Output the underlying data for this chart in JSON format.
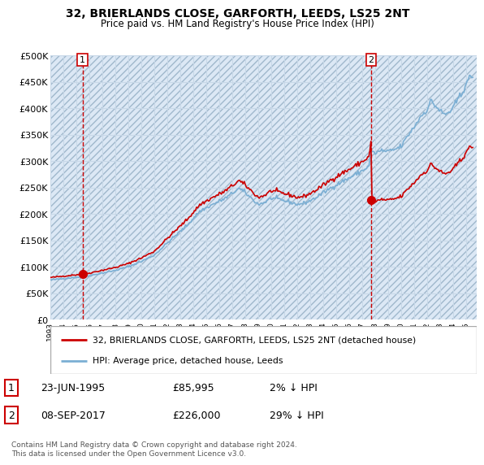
{
  "title_line1": "32, BRIERLANDS CLOSE, GARFORTH, LEEDS, LS25 2NT",
  "title_line2": "Price paid vs. HM Land Registry's House Price Index (HPI)",
  "ylim": [
    0,
    500000
  ],
  "yticks": [
    0,
    50000,
    100000,
    150000,
    200000,
    250000,
    300000,
    350000,
    400000,
    450000,
    500000
  ],
  "ytick_labels": [
    "£0",
    "£50K",
    "£100K",
    "£150K",
    "£200K",
    "£250K",
    "£300K",
    "£350K",
    "£400K",
    "£450K",
    "£500K"
  ],
  "legend_line1": "32, BRIERLANDS CLOSE, GARFORTH, LEEDS, LS25 2NT (detached house)",
  "legend_line2": "HPI: Average price, detached house, Leeds",
  "sale1_date": "23-JUN-1995",
  "sale1_price": "£85,995",
  "sale1_hpi": "2% ↓ HPI",
  "sale2_date": "08-SEP-2017",
  "sale2_price": "£226,000",
  "sale2_hpi": "29% ↓ HPI",
  "footer": "Contains HM Land Registry data © Crown copyright and database right 2024.\nThis data is licensed under the Open Government Licence v3.0.",
  "hpi_color": "#7bafd4",
  "sale_color": "#cc0000",
  "bg_color": "#dce8f5",
  "grid_color": "#b8cfe0",
  "sale1_x": 1995.48,
  "sale1_y": 85995,
  "sale2_x": 2017.68,
  "sale2_y": 226000,
  "hpi_at_sale1": 87800,
  "hpi_at_sale2": 318000,
  "xlim_left": 1993.0,
  "xlim_right": 2025.8
}
